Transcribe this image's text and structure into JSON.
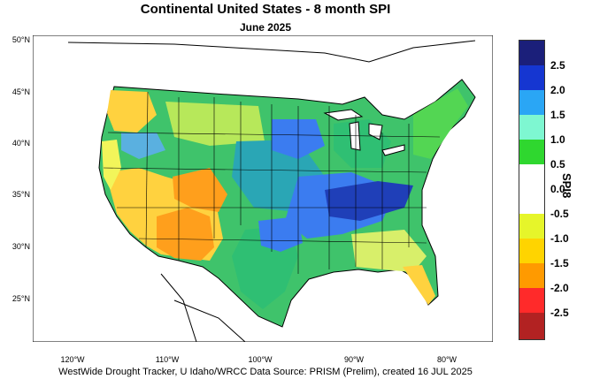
{
  "header": {
    "title": "Continental United States - 8 month SPI",
    "subtitle": "June 2025"
  },
  "footer": {
    "credit": "WestWide Drought Tracker, U Idaho/WRCC Data Source: PRISM (Prelim), created 16 JUL 2025"
  },
  "map": {
    "latitude_labels": [
      "50°N",
      "45°N",
      "40°N",
      "35°N",
      "30°N",
      "25°N"
    ],
    "longitude_labels": [
      "120°W",
      "110°W",
      "100°W",
      "90°W",
      "80°W"
    ],
    "region_colors": {
      "ocean": "#ffffff",
      "very_dry": "#ff9f1c",
      "dry": "#ffd23f",
      "slightly_dry": "#f2f55a",
      "near_normal": "#ffffff",
      "slightly_wet": "#53d653",
      "wet": "#2fbf73",
      "very_wet": "#3b7cf0",
      "extremely_wet": "#1f3fb8"
    }
  },
  "legend": {
    "name": "SPI8",
    "ticks": [
      "2.5",
      "2.0",
      "1.5",
      "1.0",
      "0.5",
      "0.0",
      "-0.5",
      "-1.0",
      "-1.5",
      "-2.0",
      "-2.5"
    ],
    "colors": [
      "#1b1f7a",
      "#1536d1",
      "#2aa6f5",
      "#7ef7d1",
      "#2fd72f",
      "#ffffff",
      "#ffffff",
      "#e6f52a",
      "#ffd400",
      "#ff9a00",
      "#ff2a2a",
      "#b22222"
    ]
  }
}
